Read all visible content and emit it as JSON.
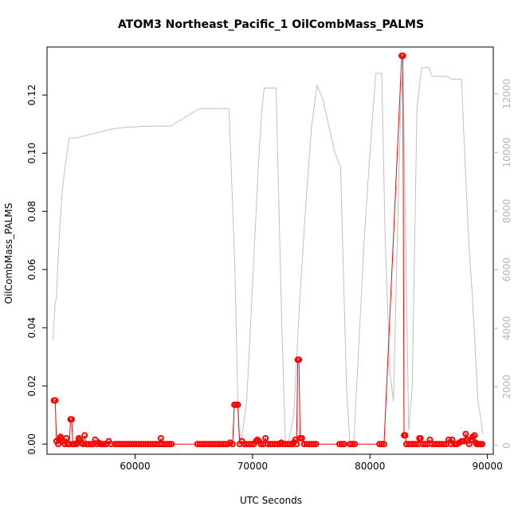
{
  "chart_data": {
    "type": "line",
    "title": "ATOM3 Northeast_Pacific_1 OilCombMass_PALMS",
    "xlabel": "UTC Seconds",
    "ylabel": "OilCombMass_PALMS",
    "xlim": [
      52500,
      90500
    ],
    "ylim": [
      -0.0035,
      0.1365
    ],
    "y2lim": [
      -300,
      13600
    ],
    "x_ticks": [
      "60000",
      "70000",
      "80000",
      "90000"
    ],
    "y_ticks": [
      "0.00",
      "0.02",
      "0.04",
      "0.06",
      "0.08",
      "0.10",
      "0.12"
    ],
    "y2_ticks": [
      "0",
      "2000",
      "4000",
      "6000",
      "8000",
      "10000",
      "12000"
    ],
    "grid": false,
    "colors": {
      "series": "#ff0000",
      "altitude": "#c0c0c0",
      "axis": "#000000",
      "axis2": "#b4b4b4"
    },
    "series": [
      {
        "style": "points+line",
        "points": [
          [
            53100,
            0.015
          ],
          [
            53200,
            0.015
          ],
          [
            53300,
            0.001
          ],
          [
            53450,
            0.0
          ],
          [
            53550,
            0.0015
          ],
          [
            53650,
            0.0025
          ],
          [
            53750,
            0.002
          ],
          [
            53850,
            0.001
          ],
          [
            54000,
            0.0
          ],
          [
            54150,
            0.002
          ],
          [
            54250,
            0.0
          ],
          [
            54400,
            0.0
          ],
          [
            54500,
            0.0085
          ],
          [
            54600,
            0.0085
          ],
          [
            54700,
            0.0
          ],
          [
            54800,
            0.0
          ],
          [
            55000,
            0.0
          ],
          [
            55100,
            0.0005
          ],
          [
            55200,
            0.002
          ],
          [
            55300,
            0.0015
          ],
          [
            55450,
            0.0005
          ],
          [
            55550,
            0.0
          ],
          [
            55700,
            0.003
          ],
          [
            55850,
            0.0
          ],
          [
            56000,
            0.0
          ],
          [
            56200,
            0.0
          ],
          [
            56400,
            0.0
          ],
          [
            56600,
            0.0015
          ],
          [
            56750,
            0.0
          ],
          [
            56900,
            0.0005
          ],
          [
            57050,
            0.0
          ],
          [
            57200,
            0.0
          ],
          [
            57350,
            0.0
          ],
          [
            57550,
            0.0
          ],
          [
            57750,
            0.001
          ],
          [
            57950,
            0.0
          ],
          [
            58300,
            0.0
          ],
          [
            58500,
            0.0
          ],
          [
            58700,
            0.0
          ],
          [
            58900,
            0.0
          ],
          [
            59100,
            0.0
          ],
          [
            59300,
            0.0
          ],
          [
            59500,
            0.0
          ],
          [
            59700,
            0.0
          ],
          [
            59900,
            0.0
          ],
          [
            60100,
            0.0
          ],
          [
            60300,
            0.0
          ],
          [
            60500,
            0.0
          ],
          [
            60700,
            0.0
          ],
          [
            60900,
            0.0
          ],
          [
            61100,
            0.0
          ],
          [
            61300,
            0.0
          ],
          [
            61500,
            0.0
          ],
          [
            61700,
            0.0
          ],
          [
            61900,
            0.0
          ],
          [
            62100,
            0.0
          ],
          [
            62200,
            0.002
          ],
          [
            62300,
            0.0
          ],
          [
            62500,
            0.0
          ],
          [
            62700,
            0.0
          ],
          [
            62900,
            0.0
          ],
          [
            63100,
            0.0
          ],
          [
            65300,
            0.0
          ],
          [
            65500,
            0.0
          ],
          [
            65700,
            0.0
          ],
          [
            65900,
            0.0
          ],
          [
            66100,
            0.0
          ],
          [
            66300,
            0.0
          ],
          [
            66500,
            0.0
          ],
          [
            66700,
            0.0
          ],
          [
            66900,
            0.0
          ],
          [
            67100,
            0.0
          ],
          [
            67300,
            0.0
          ],
          [
            67500,
            0.0
          ],
          [
            67700,
            0.0
          ],
          [
            67900,
            0.0
          ],
          [
            68100,
            0.0005
          ],
          [
            68300,
            0.0
          ],
          [
            68450,
            0.0135
          ],
          [
            68600,
            0.0135
          ],
          [
            68750,
            0.0135
          ],
          [
            68900,
            0.0
          ],
          [
            69100,
            0.001
          ],
          [
            69300,
            0.0
          ],
          [
            69500,
            0.0
          ],
          [
            69700,
            0.0
          ],
          [
            69900,
            0.0
          ],
          [
            70100,
            0.0
          ],
          [
            70300,
            0.001
          ],
          [
            70400,
            0.0015
          ],
          [
            70550,
            0.001
          ],
          [
            70700,
            0.0
          ],
          [
            70900,
            0.0
          ],
          [
            71100,
            0.002
          ],
          [
            71300,
            0.0
          ],
          [
            71500,
            0.0
          ],
          [
            71700,
            0.0
          ],
          [
            71900,
            0.0
          ],
          [
            72100,
            0.0
          ],
          [
            72300,
            0.0
          ],
          [
            72450,
            0.0005
          ],
          [
            72600,
            0.0
          ],
          [
            72800,
            0.0
          ],
          [
            73000,
            0.0
          ],
          [
            73200,
            0.0
          ],
          [
            73400,
            0.0
          ],
          [
            73500,
            0.0005
          ],
          [
            73650,
            0.0015
          ],
          [
            73750,
            0.0
          ],
          [
            73850,
            0.029
          ],
          [
            73950,
            0.029
          ],
          [
            74050,
            0.002
          ],
          [
            74200,
            0.002
          ],
          [
            74400,
            0.0
          ],
          [
            74600,
            0.0
          ],
          [
            74800,
            0.0
          ],
          [
            75000,
            0.0
          ],
          [
            75200,
            0.0
          ],
          [
            75400,
            0.0
          ],
          [
            77400,
            0.0
          ],
          [
            77600,
            0.0
          ],
          [
            77800,
            0.0
          ],
          [
            78300,
            0.0
          ],
          [
            78500,
            0.0
          ],
          [
            78700,
            0.0
          ],
          [
            80800,
            0.0
          ],
          [
            81000,
            0.0
          ],
          [
            81200,
            0.0
          ],
          [
            82700,
            0.1335
          ],
          [
            82800,
            0.1335
          ],
          [
            82900,
            0.003
          ],
          [
            83000,
            0.003
          ],
          [
            83100,
            0.0
          ],
          [
            83300,
            0.0
          ],
          [
            83500,
            0.0
          ],
          [
            83700,
            0.0
          ],
          [
            83900,
            0.0
          ],
          [
            84100,
            0.0
          ],
          [
            84200,
            0.002
          ],
          [
            84300,
            0.002
          ],
          [
            84500,
            0.0
          ],
          [
            84700,
            0.0
          ],
          [
            84900,
            0.0
          ],
          [
            85100,
            0.0015
          ],
          [
            85300,
            0.0
          ],
          [
            85500,
            0.0
          ],
          [
            85700,
            0.0
          ],
          [
            85900,
            0.0
          ],
          [
            86100,
            0.0
          ],
          [
            86300,
            0.0
          ],
          [
            86500,
            0.0
          ],
          [
            86700,
            0.0015
          ],
          [
            86900,
            0.0
          ],
          [
            87000,
            0.0015
          ],
          [
            87200,
            0.0
          ],
          [
            87400,
            0.0
          ],
          [
            87600,
            0.0005
          ],
          [
            87800,
            0.001
          ],
          [
            87900,
            0.001
          ],
          [
            88000,
            0.001
          ],
          [
            88150,
            0.0035
          ],
          [
            88300,
            0.0015
          ],
          [
            88450,
            0.0
          ],
          [
            88600,
            0.0015
          ],
          [
            88750,
            0.0025
          ],
          [
            88900,
            0.003
          ],
          [
            89000,
            0.0005
          ],
          [
            89100,
            0.0
          ],
          [
            89250,
            0.0
          ],
          [
            89400,
            0.0
          ],
          [
            89550,
            0.0
          ]
        ]
      },
      {
        "style": "line",
        "axis": "right",
        "points": [
          [
            53000,
            3600
          ],
          [
            53200,
            4900
          ],
          [
            53300,
            5000
          ],
          [
            53400,
            6000
          ],
          [
            53600,
            7500
          ],
          [
            53800,
            8700
          ],
          [
            54000,
            9400
          ],
          [
            54400,
            10500
          ],
          [
            55000,
            10500
          ],
          [
            56000,
            10600
          ],
          [
            57000,
            10700
          ],
          [
            58000,
            10800
          ],
          [
            59000,
            10850
          ],
          [
            61000,
            10900
          ],
          [
            63000,
            10900
          ],
          [
            65500,
            11500
          ],
          [
            68000,
            11500
          ],
          [
            68500,
            6000
          ],
          [
            68800,
            600
          ],
          [
            69000,
            0
          ],
          [
            69500,
            1500
          ],
          [
            70000,
            5500
          ],
          [
            70500,
            9600
          ],
          [
            70800,
            11500
          ],
          [
            71000,
            12200
          ],
          [
            72000,
            12200
          ],
          [
            72500,
            4000
          ],
          [
            72800,
            0
          ],
          [
            73000,
            0
          ],
          [
            73500,
            1000
          ],
          [
            74000,
            4800
          ],
          [
            74500,
            8000
          ],
          [
            75000,
            10800
          ],
          [
            75500,
            12300
          ],
          [
            76000,
            11800
          ],
          [
            77000,
            10000
          ],
          [
            77500,
            9500
          ],
          [
            78000,
            2000
          ],
          [
            78300,
            0
          ],
          [
            78600,
            0
          ],
          [
            79000,
            3000
          ],
          [
            79500,
            7000
          ],
          [
            80000,
            10000
          ],
          [
            80500,
            12700
          ],
          [
            81000,
            12700
          ],
          [
            81300,
            7000
          ],
          [
            81700,
            2500
          ],
          [
            82000,
            1500
          ],
          [
            82600,
            11500
          ],
          [
            82800,
            12800
          ],
          [
            83000,
            8000
          ],
          [
            83300,
            500
          ],
          [
            83600,
            2000
          ],
          [
            84000,
            11500
          ],
          [
            84400,
            12900
          ],
          [
            85000,
            12900
          ],
          [
            85300,
            12600
          ],
          [
            86500,
            12600
          ],
          [
            87000,
            12500
          ],
          [
            87800,
            12500
          ],
          [
            88000,
            10500
          ],
          [
            88400,
            7000
          ],
          [
            88700,
            5200
          ],
          [
            89000,
            3000
          ],
          [
            89200,
            1500
          ],
          [
            89400,
            1000
          ],
          [
            89600,
            400
          ]
        ]
      }
    ]
  }
}
